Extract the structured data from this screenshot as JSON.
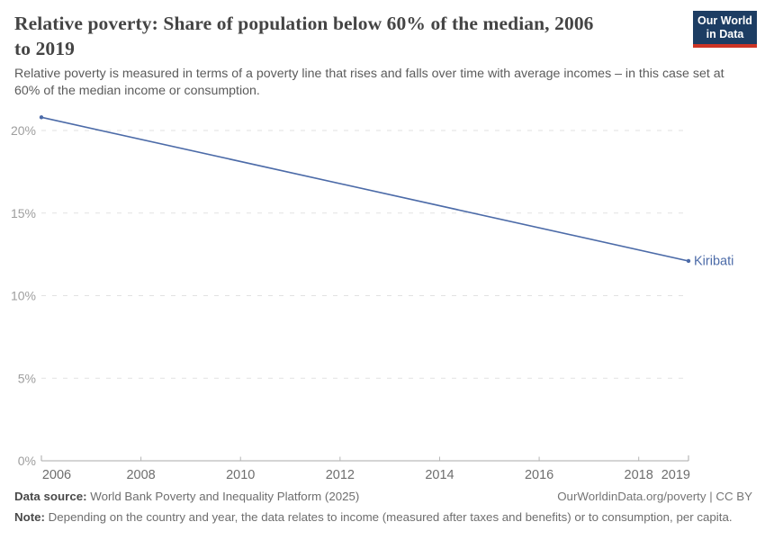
{
  "header": {
    "title": "Relative poverty: Share of population below 60% of the median, 2006 to 2019",
    "subtitle": "Relative poverty is measured in terms of a poverty line that rises and falls over time with average incomes – in this case set at 60% of the median income or consumption.",
    "logo": {
      "line1": "Our World",
      "line2": "in Data",
      "bg_color": "#1d3d63",
      "accent_color": "#cd3425"
    }
  },
  "chart_data": {
    "type": "line",
    "x": [
      2006,
      2019
    ],
    "series": [
      {
        "name": "Kiribati",
        "values": [
          20.8,
          12.1
        ],
        "color": "#4c6ba8"
      }
    ],
    "title": "Relative poverty: Share of population below 60% of the median, 2006 to 2019",
    "xlabel": "",
    "ylabel": "",
    "xlim": [
      2006,
      2019
    ],
    "ylim": [
      0,
      21
    ],
    "yticks": [
      0,
      5,
      10,
      15,
      20
    ],
    "ytick_suffix": "%",
    "xticks": [
      2006,
      2008,
      2010,
      2012,
      2014,
      2016,
      2018,
      2019
    ],
    "grid": "horizontal-dashed",
    "legend_position": "end-of-line-label",
    "entity_label": "Kiribati",
    "colors": {
      "gridline": "#e2e2e2",
      "axis": "#a9a9a9",
      "tick": "#b5b5b5",
      "ytick_label": "#9e9e9e",
      "xtick_label": "#6e6e6e"
    }
  },
  "footer": {
    "source_label": "Data source:",
    "source_text": " World Bank Poverty and Inequality Platform (2025)",
    "rights": "OurWorldinData.org/poverty | CC BY",
    "note_label": "Note:",
    "note_text": " Depending on the country and year, the data relates to income (measured after taxes and benefits) or to consumption, per capita."
  }
}
